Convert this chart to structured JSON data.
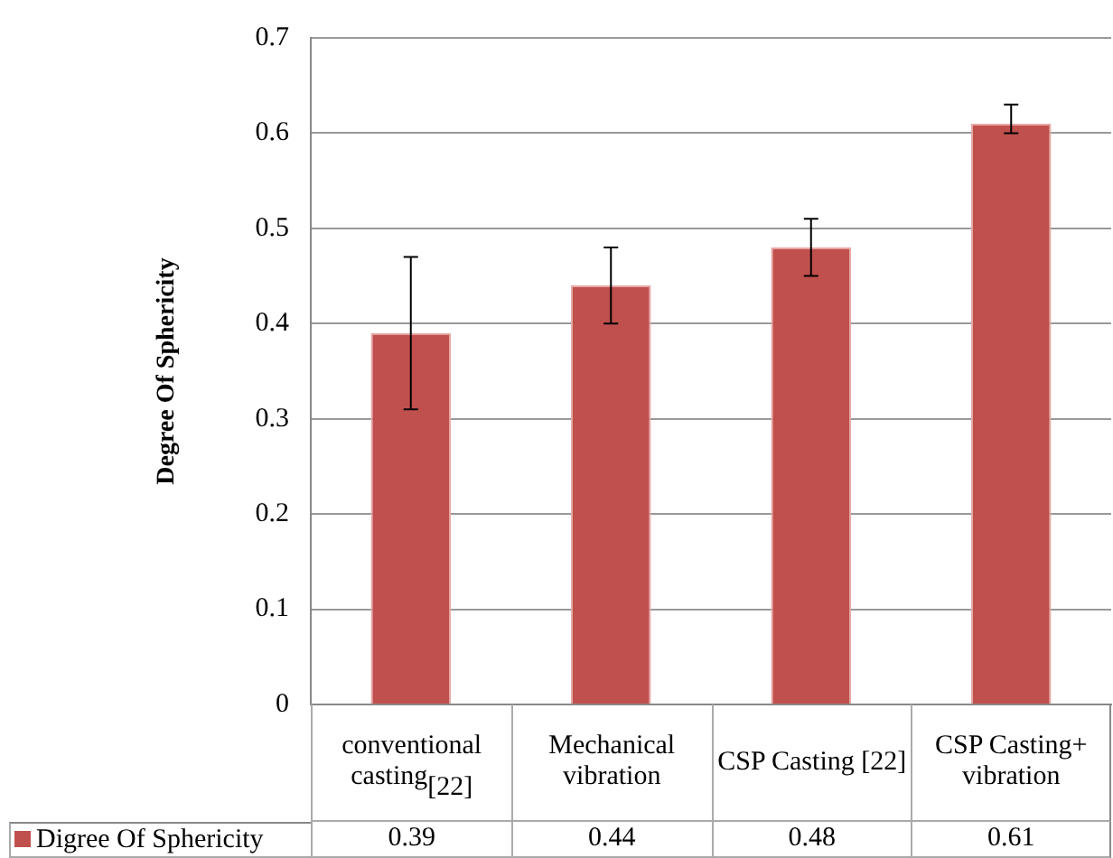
{
  "chart_data": {
    "type": "bar",
    "ylabel": "Degree Of Sphericity",
    "categories": [
      "conventional casting$_{[22]}$",
      "Mechanical vibration",
      "CSP Casting [22]",
      "CSP Casting+ vibration"
    ],
    "series": [
      {
        "name": "Digree Of Sphericity",
        "color": "#c0504d",
        "values": [
          0.39,
          0.44,
          0.48,
          0.61
        ],
        "errors": [
          [
            0.31,
            0.47
          ],
          [
            0.4,
            0.48
          ],
          [
            0.45,
            0.51
          ],
          [
            0.6,
            0.63
          ]
        ]
      }
    ],
    "ylim": [
      0,
      0.7
    ],
    "yticks": [
      0,
      {
        "value": 0.1,
        "label": "0.1"
      },
      {
        "value": 0.2,
        "label": "0.2"
      },
      {
        "value": 0.3,
        "label": "0.3"
      },
      {
        "value": 0.4,
        "label": "0.4"
      },
      {
        "value": 0.5,
        "label": "0.5"
      },
      {
        "value": 0.6,
        "label": "0.6"
      },
      {
        "value": 0.7,
        "label": "0.7"
      }
    ],
    "grid": true,
    "legend": "bottom left",
    "data_labels": true
  }
}
